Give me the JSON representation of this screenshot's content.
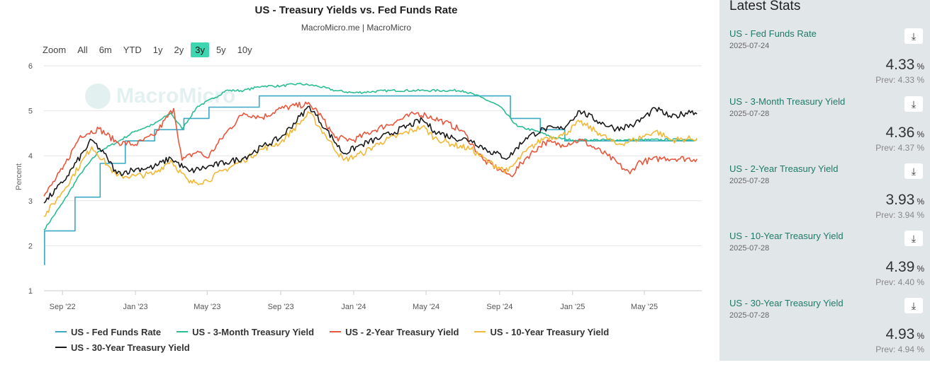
{
  "chart": {
    "title": "US - Treasury Yields vs. Fed Funds Rate",
    "subtitle": "MacroMicro.me | MacroMicro",
    "watermark": "MacroMicro",
    "zoom": {
      "label": "Zoom",
      "buttons": [
        "All",
        "6m",
        "YTD",
        "1y",
        "2y",
        "3y",
        "5y",
        "10y"
      ],
      "active": "3y"
    }
  },
  "chart_data": {
    "type": "line",
    "title": "US - Treasury Yields vs. Fed Funds Rate",
    "ylabel": "Percent",
    "ylim": [
      1,
      6
    ],
    "yticks": [
      "1",
      "2",
      "3",
      "4",
      "5",
      "6"
    ],
    "xlim": [
      "2022-08-01",
      "2025-08-05"
    ],
    "xticks": [
      {
        "date": "2022-09-01",
        "label": "Sep '22"
      },
      {
        "date": "2023-01-01",
        "label": "Jan '23"
      },
      {
        "date": "2023-05-01",
        "label": "May '23"
      },
      {
        "date": "2023-09-01",
        "label": "Sep '23"
      },
      {
        "date": "2024-01-01",
        "label": "Jan '24"
      },
      {
        "date": "2024-05-01",
        "label": "May '24"
      },
      {
        "date": "2024-09-01",
        "label": "Sep '24"
      },
      {
        "date": "2025-01-01",
        "label": "Jan '25"
      },
      {
        "date": "2025-05-01",
        "label": "May '25"
      }
    ],
    "grid": true,
    "legend_position": "bottom-left",
    "series": [
      {
        "name": "US - Fed Funds Rate",
        "color": "#3ba8c4",
        "step": true,
        "points": [
          [
            "2022-08-01",
            1.58
          ],
          [
            "2022-08-02",
            2.33
          ],
          [
            "2022-09-22",
            3.08
          ],
          [
            "2022-11-03",
            3.83
          ],
          [
            "2022-12-15",
            4.33
          ],
          [
            "2023-02-02",
            4.58
          ],
          [
            "2023-03-23",
            4.83
          ],
          [
            "2023-05-04",
            5.08
          ],
          [
            "2023-07-27",
            5.33
          ],
          [
            "2024-09-19",
            4.83
          ],
          [
            "2024-11-08",
            4.58
          ],
          [
            "2024-12-19",
            4.33
          ],
          [
            "2025-07-24",
            4.33
          ]
        ]
      },
      {
        "name": "US - 3-Month Treasury Yield",
        "color": "#2bbd95",
        "points": [
          [
            "2022-08-01",
            2.35
          ],
          [
            "2022-09-01",
            2.95
          ],
          [
            "2022-10-01",
            3.6
          ],
          [
            "2022-11-01",
            4.1
          ],
          [
            "2022-12-01",
            4.3
          ],
          [
            "2023-01-01",
            4.55
          ],
          [
            "2023-02-01",
            4.7
          ],
          [
            "2023-03-01",
            4.95
          ],
          [
            "2023-03-20",
            4.6
          ],
          [
            "2023-04-15",
            5.1
          ],
          [
            "2023-05-15",
            5.3
          ],
          [
            "2023-06-01",
            5.45
          ],
          [
            "2023-07-01",
            5.45
          ],
          [
            "2023-08-01",
            5.55
          ],
          [
            "2023-09-01",
            5.55
          ],
          [
            "2023-10-01",
            5.6
          ],
          [
            "2023-11-01",
            5.55
          ],
          [
            "2023-12-01",
            5.45
          ],
          [
            "2024-01-01",
            5.4
          ],
          [
            "2024-03-01",
            5.45
          ],
          [
            "2024-05-01",
            5.45
          ],
          [
            "2024-07-01",
            5.45
          ],
          [
            "2024-08-01",
            5.3
          ],
          [
            "2024-09-01",
            5.1
          ],
          [
            "2024-10-01",
            4.65
          ],
          [
            "2024-11-01",
            4.55
          ],
          [
            "2024-12-01",
            4.4
          ],
          [
            "2025-01-01",
            4.35
          ],
          [
            "2025-04-01",
            4.35
          ],
          [
            "2025-07-28",
            4.36
          ]
        ]
      },
      {
        "name": "US - 2-Year Treasury Yield",
        "color": "#e8563c",
        "points": [
          [
            "2022-08-01",
            3.1
          ],
          [
            "2022-09-01",
            3.7
          ],
          [
            "2022-10-01",
            4.45
          ],
          [
            "2022-11-01",
            4.6
          ],
          [
            "2022-12-01",
            4.3
          ],
          [
            "2023-01-01",
            4.25
          ],
          [
            "2023-02-01",
            4.45
          ],
          [
            "2023-03-06",
            5.05
          ],
          [
            "2023-03-20",
            3.9
          ],
          [
            "2023-04-15",
            4.1
          ],
          [
            "2023-05-01",
            3.95
          ],
          [
            "2023-06-01",
            4.5
          ],
          [
            "2023-07-01",
            4.95
          ],
          [
            "2023-08-01",
            4.85
          ],
          [
            "2023-09-01",
            5.05
          ],
          [
            "2023-10-15",
            5.15
          ],
          [
            "2023-11-01",
            5.0
          ],
          [
            "2023-12-01",
            4.4
          ],
          [
            "2024-01-01",
            4.35
          ],
          [
            "2024-02-01",
            4.55
          ],
          [
            "2024-04-15",
            4.95
          ],
          [
            "2024-05-01",
            4.9
          ],
          [
            "2024-06-01",
            4.75
          ],
          [
            "2024-07-01",
            4.55
          ],
          [
            "2024-08-05",
            3.9
          ],
          [
            "2024-09-20",
            3.55
          ],
          [
            "2024-10-15",
            3.95
          ],
          [
            "2024-11-15",
            4.3
          ],
          [
            "2024-12-15",
            4.25
          ],
          [
            "2025-01-15",
            4.35
          ],
          [
            "2025-03-01",
            4.0
          ],
          [
            "2025-04-07",
            3.6
          ],
          [
            "2025-04-20",
            3.85
          ],
          [
            "2025-06-01",
            3.95
          ],
          [
            "2025-07-28",
            3.93
          ]
        ]
      },
      {
        "name": "US - 10-Year Treasury Yield",
        "color": "#f2b838",
        "points": [
          [
            "2022-08-01",
            2.65
          ],
          [
            "2022-09-01",
            3.2
          ],
          [
            "2022-10-20",
            4.2
          ],
          [
            "2022-11-15",
            3.8
          ],
          [
            "2022-12-01",
            3.55
          ],
          [
            "2023-01-01",
            3.55
          ],
          [
            "2023-02-01",
            3.6
          ],
          [
            "2023-03-01",
            3.9
          ],
          [
            "2023-04-01",
            3.4
          ],
          [
            "2023-05-01",
            3.45
          ],
          [
            "2023-06-01",
            3.7
          ],
          [
            "2023-07-01",
            3.9
          ],
          [
            "2023-08-01",
            4.15
          ],
          [
            "2023-09-01",
            4.3
          ],
          [
            "2023-10-19",
            4.95
          ],
          [
            "2023-11-15",
            4.45
          ],
          [
            "2023-12-15",
            3.9
          ],
          [
            "2024-01-15",
            4.05
          ],
          [
            "2024-02-15",
            4.3
          ],
          [
            "2024-04-25",
            4.65
          ],
          [
            "2024-05-15",
            4.4
          ],
          [
            "2024-06-15",
            4.25
          ],
          [
            "2024-07-15",
            4.15
          ],
          [
            "2024-08-15",
            3.85
          ],
          [
            "2024-09-15",
            3.65
          ],
          [
            "2024-10-15",
            4.1
          ],
          [
            "2024-11-15",
            4.4
          ],
          [
            "2024-12-15",
            4.45
          ],
          [
            "2025-01-13",
            4.75
          ],
          [
            "2025-02-15",
            4.5
          ],
          [
            "2025-03-15",
            4.25
          ],
          [
            "2025-04-15",
            4.35
          ],
          [
            "2025-05-20",
            4.55
          ],
          [
            "2025-06-15",
            4.35
          ],
          [
            "2025-07-28",
            4.39
          ]
        ]
      },
      {
        "name": "US - 30-Year Treasury Yield",
        "color": "#1a1a1a",
        "points": [
          [
            "2022-08-01",
            2.95
          ],
          [
            "2022-09-01",
            3.4
          ],
          [
            "2022-10-20",
            4.35
          ],
          [
            "2022-11-15",
            3.95
          ],
          [
            "2022-12-01",
            3.6
          ],
          [
            "2023-01-01",
            3.7
          ],
          [
            "2023-02-01",
            3.75
          ],
          [
            "2023-03-01",
            3.95
          ],
          [
            "2023-04-01",
            3.65
          ],
          [
            "2023-05-01",
            3.75
          ],
          [
            "2023-06-01",
            3.85
          ],
          [
            "2023-07-01",
            3.95
          ],
          [
            "2023-08-01",
            4.2
          ],
          [
            "2023-09-01",
            4.4
          ],
          [
            "2023-10-19",
            5.1
          ],
          [
            "2023-11-15",
            4.6
          ],
          [
            "2023-12-15",
            4.05
          ],
          [
            "2024-01-15",
            4.25
          ],
          [
            "2024-02-15",
            4.4
          ],
          [
            "2024-04-25",
            4.8
          ],
          [
            "2024-05-15",
            4.55
          ],
          [
            "2024-06-15",
            4.4
          ],
          [
            "2024-07-15",
            4.35
          ],
          [
            "2024-08-15",
            4.1
          ],
          [
            "2024-09-15",
            3.95
          ],
          [
            "2024-10-15",
            4.4
          ],
          [
            "2024-11-15",
            4.6
          ],
          [
            "2024-12-15",
            4.6
          ],
          [
            "2025-01-13",
            5.0
          ],
          [
            "2025-02-15",
            4.75
          ],
          [
            "2025-03-15",
            4.6
          ],
          [
            "2025-04-15",
            4.7
          ],
          [
            "2025-05-20",
            5.05
          ],
          [
            "2025-06-15",
            4.85
          ],
          [
            "2025-07-20",
            5.0
          ],
          [
            "2025-07-28",
            4.93
          ]
        ]
      }
    ]
  },
  "stats": {
    "title": "Latest Stats",
    "download_icon": "download-icon",
    "items": [
      {
        "name": "US - Fed Funds Rate",
        "date": "2025-07-24",
        "value": "4.33",
        "unit": "%",
        "prev": "Prev: 4.33 %"
      },
      {
        "name": "US - 3-Month Treasury Yield",
        "date": "2025-07-28",
        "value": "4.36",
        "unit": "%",
        "prev": "Prev: 4.37 %"
      },
      {
        "name": "US - 2-Year Treasury Yield",
        "date": "2025-07-28",
        "value": "3.93",
        "unit": "%",
        "prev": "Prev: 3.94 %"
      },
      {
        "name": "US - 10-Year Treasury Yield",
        "date": "2025-07-28",
        "value": "4.39",
        "unit": "%",
        "prev": "Prev: 4.40 %"
      },
      {
        "name": "US - 30-Year Treasury Yield",
        "date": "2025-07-28",
        "value": "4.93",
        "unit": "%",
        "prev": "Prev: 4.94 %"
      }
    ]
  }
}
